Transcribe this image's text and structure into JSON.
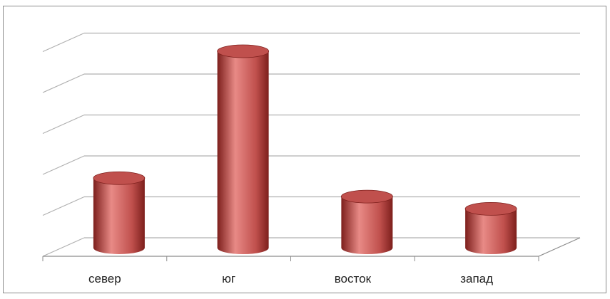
{
  "chart_data": {
    "type": "bar",
    "style": "3d-cylinder",
    "title": "",
    "xlabel": "",
    "ylabel": "",
    "categories": [
      "север",
      "юг",
      "восток",
      "запад"
    ],
    "values": [
      1.7,
      4.8,
      1.25,
      0.95
    ],
    "ylim": [
      0,
      5
    ],
    "grid": true,
    "y_tick_labels_visible": false,
    "legend": "none",
    "colors": {
      "bar": "#c0504d",
      "bar_dark": "#7d1f1c",
      "bar_light": "#e88a86",
      "grid": "#b0b0b0",
      "axis": "#8c8c8c",
      "frame": "#8c8c8c"
    }
  }
}
